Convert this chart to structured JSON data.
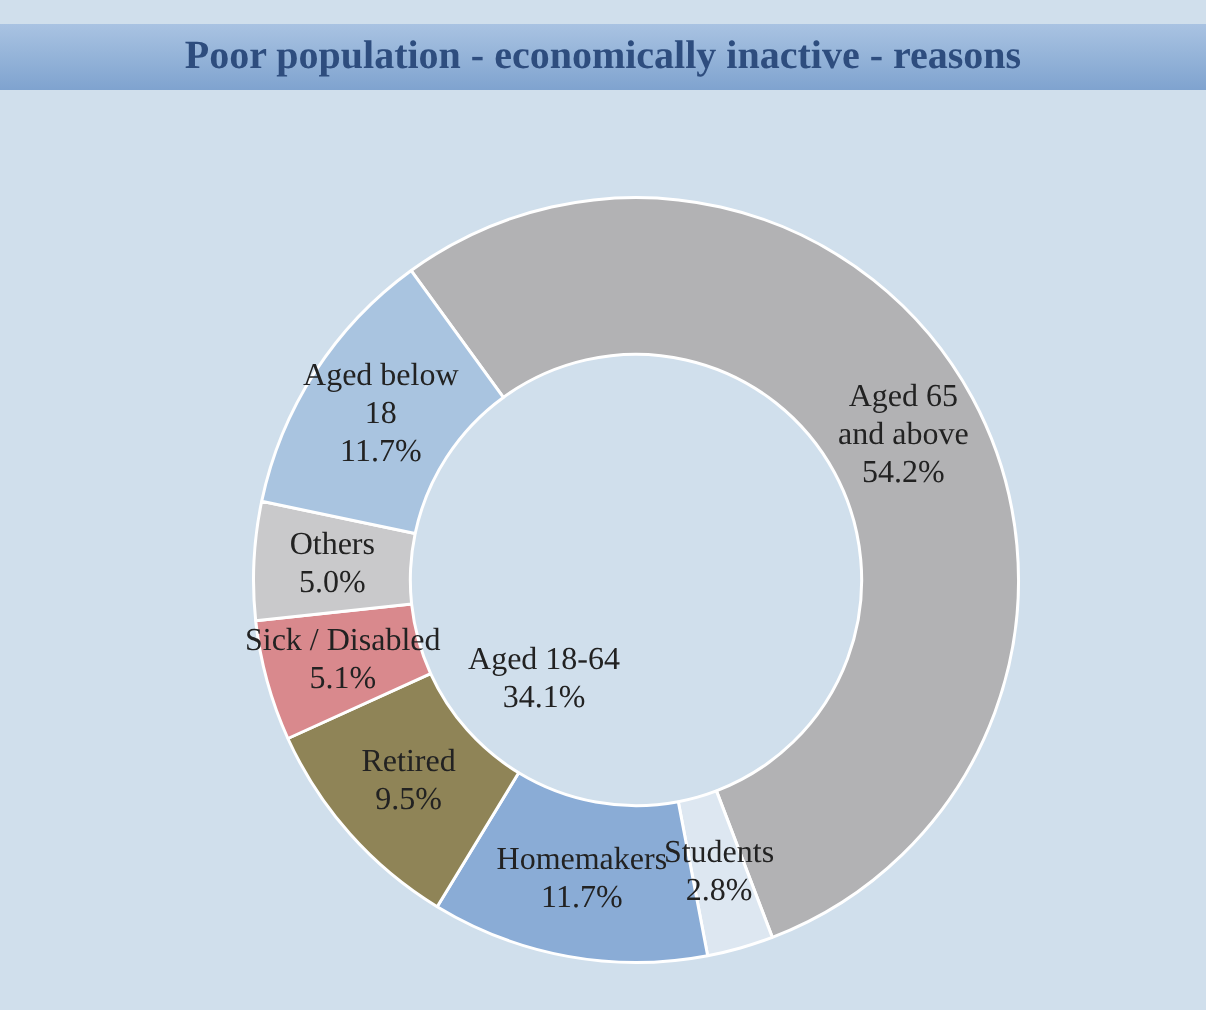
{
  "chart_data": {
    "type": "donut",
    "title": "Poor population - economically inactive - reasons",
    "categories": [
      "Aged 65 and above",
      "Students",
      "Homemakers",
      "Retired",
      "Sick / Disabled",
      "Others",
      "Aged below 18"
    ],
    "values": [
      54.2,
      2.8,
      11.7,
      9.5,
      5.1,
      5.0,
      11.7
    ],
    "value_labels": [
      "54.2%",
      "2.8%",
      "11.7%",
      "9.5%",
      "5.1%",
      "5.0%",
      "11.7%"
    ],
    "colors": [
      "#b2b2b4",
      "#dde7f1",
      "#8aacd6",
      "#8f8457",
      "#d9898d",
      "#c9c9cb",
      "#a9c4e0"
    ],
    "annotations": [
      "Aged 18-64 34.1%"
    ],
    "legend": false
  }
}
